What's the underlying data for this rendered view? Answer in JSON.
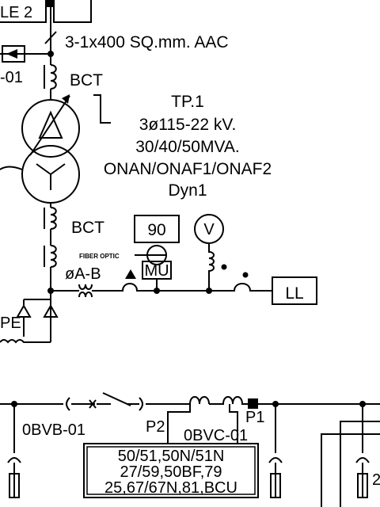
{
  "top_bus_label": "LE 2",
  "cable_spec": "3-1x400 SQ.mm. AAC",
  "left_ref": "-01",
  "bct_upper": "BCT",
  "bct_lower": "BCT",
  "transformer": {
    "name": "TP.1",
    "voltage": "3ø115-22 kV.",
    "rating": "30/40/50MVA.",
    "cooling": "ONAN/ONAF1/ONAF2",
    "vector_group": "Dyn1"
  },
  "relay_90": "90",
  "meter_v": "V",
  "fiber_optic": "FIBER OPTIC",
  "mu_label": "MU",
  "phase_label": "øA-B",
  "load_label": "LL",
  "pe_label": "PE",
  "lower": {
    "left_breaker": "0BVB-01",
    "p2": "P2",
    "p1": "P1",
    "right_breaker": "0BVC-01",
    "relay_line1": "50/51,50N/51N",
    "relay_line2": "27/59,50BF,79",
    "relay_line3": "25,67/67N,81,BCU",
    "right_num": "2"
  },
  "colors": {
    "ink": "#000000",
    "paper": "#ffffff"
  }
}
